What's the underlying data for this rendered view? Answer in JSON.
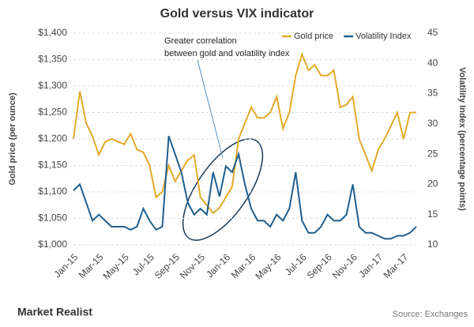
{
  "chart_data": {
    "type": "line",
    "title": "Gold versus VIX indicator",
    "y_label": "Gold price (per ounce)",
    "y2_label": "Volatility Index (percentage points)",
    "annotation": "Greater correlation between gold and volatility index",
    "source": "Source: Exchanges",
    "brand": "Market Realist",
    "categories": [
      "Jan-15",
      null,
      null,
      null,
      "Mar-15",
      null,
      null,
      null,
      "May-15",
      null,
      null,
      null,
      "Jul-15",
      null,
      null,
      null,
      "Sep-15",
      null,
      null,
      null,
      "Nov-15",
      null,
      null,
      null,
      "Jan-16",
      null,
      null,
      null,
      "Mar-16",
      null,
      null,
      null,
      "May-16",
      null,
      null,
      null,
      "Jul-16",
      null,
      null,
      null,
      "Sep-16",
      null,
      null,
      null,
      "Nov-16",
      null,
      null,
      null,
      "Jan-17",
      null,
      null,
      null,
      "Mar-17",
      null,
      null
    ],
    "series": [
      {
        "name": "Gold price",
        "color": "#e3a92b",
        "axis": "y",
        "values": [
          1200,
          1290,
          1230,
          1205,
          1170,
          1195,
          1200,
          1195,
          1190,
          1210,
          1180,
          1175,
          1150,
          1090,
          1100,
          1150,
          1120,
          1140,
          1160,
          1170,
          1090,
          1075,
          1060,
          1070,
          1090,
          1110,
          1200,
          1230,
          1260,
          1240,
          1240,
          1250,
          1280,
          1220,
          1250,
          1320,
          1360,
          1330,
          1340,
          1320,
          1320,
          1330,
          1260,
          1265,
          1280,
          1200,
          1170,
          1140,
          1180,
          1200,
          1225,
          1250,
          1200,
          1250,
          1250
        ]
      },
      {
        "name": "Volatility Index",
        "color": "#1f5f8f",
        "axis": "y2",
        "values": [
          19,
          20,
          17,
          14,
          15,
          14,
          13,
          13,
          13,
          12.5,
          13,
          16,
          14,
          12.5,
          13,
          28,
          25,
          22,
          17,
          15,
          16,
          15,
          22,
          18,
          23,
          22,
          25,
          20,
          16,
          14,
          14,
          13,
          15,
          14,
          16,
          22,
          14,
          12,
          12,
          13,
          15,
          14,
          14,
          15,
          20,
          13,
          12,
          12,
          11.5,
          11,
          11,
          11.5,
          11.5,
          12,
          13
        ]
      }
    ],
    "ylim": [
      1000,
      1400
    ],
    "yticks": [
      {
        "value": 1000,
        "label": "$1,000"
      },
      {
        "value": 1050,
        "label": "$1,050"
      },
      {
        "value": 1100,
        "label": "$1,100"
      },
      {
        "value": 1150,
        "label": "$1,150"
      },
      {
        "value": 1200,
        "label": "$1,200"
      },
      {
        "value": 1250,
        "label": "$1,250"
      },
      {
        "value": 1300,
        "label": "$1,300"
      },
      {
        "value": 1350,
        "label": "$1,350"
      },
      {
        "value": 1400,
        "label": "$1,400"
      }
    ],
    "y2lim": [
      10,
      45
    ],
    "y2ticks": [
      10,
      15,
      20,
      25,
      30,
      35,
      40,
      45
    ],
    "grid": true,
    "legend": "top-right"
  }
}
